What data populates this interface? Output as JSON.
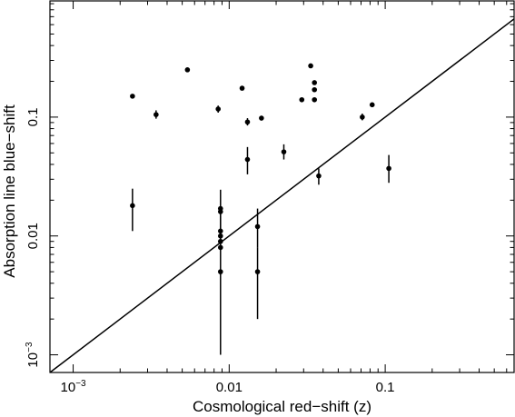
{
  "chart_data": {
    "type": "scatter",
    "title": "",
    "xlabel": "Cosmological red−shift (z)",
    "ylabel": "Absorption line blue−shift",
    "xscale": "log",
    "yscale": "log",
    "xlim": [
      0.00071,
      0.67
    ],
    "ylim": [
      0.00071,
      0.95
    ],
    "x_ticks": [
      {
        "value": 0.001,
        "label": "10",
        "sup": "−3"
      },
      {
        "value": 0.01,
        "label": "0.01",
        "sup": ""
      },
      {
        "value": 0.1,
        "label": "0.1",
        "sup": ""
      }
    ],
    "y_ticks": [
      {
        "value": 0.001,
        "label": "10",
        "sup": "−3"
      },
      {
        "value": 0.01,
        "label": "0.01",
        "sup": ""
      },
      {
        "value": 0.1,
        "label": "0.1",
        "sup": ""
      }
    ],
    "x_minor_ticks": [
      0.002,
      0.003,
      0.004,
      0.005,
      0.006,
      0.007,
      0.008,
      0.009,
      0.02,
      0.03,
      0.04,
      0.05,
      0.06,
      0.07,
      0.08,
      0.09,
      0.2,
      0.3,
      0.4,
      0.5,
      0.6
    ],
    "y_minor_ticks": [
      0.002,
      0.003,
      0.004,
      0.005,
      0.006,
      0.007,
      0.008,
      0.009,
      0.02,
      0.03,
      0.04,
      0.05,
      0.06,
      0.07,
      0.08,
      0.09,
      0.2,
      0.3,
      0.4,
      0.5,
      0.6,
      0.7,
      0.8,
      0.9
    ],
    "reference_line": {
      "type": "y=x"
    },
    "grid": false,
    "points": [
      {
        "x": 0.0024,
        "y": 0.15,
        "y_err_low": 0.0,
        "y_err_high": 0.0
      },
      {
        "x": 0.0034,
        "y": 0.105,
        "y_err_low": 0.097,
        "y_err_high": 0.114
      },
      {
        "x": 0.0054,
        "y": 0.25,
        "y_err_low": 0.0,
        "y_err_high": 0.0
      },
      {
        "x": 0.0085,
        "y": 0.117,
        "y_err_low": 0.109,
        "y_err_high": 0.125
      },
      {
        "x": 0.0121,
        "y": 0.175,
        "y_err_low": 0.0,
        "y_err_high": 0.0
      },
      {
        "x": 0.0131,
        "y": 0.091,
        "y_err_low": 0.085,
        "y_err_high": 0.098
      },
      {
        "x": 0.0161,
        "y": 0.098,
        "y_err_low": 0.0,
        "y_err_high": 0.0
      },
      {
        "x": 0.0292,
        "y": 0.14,
        "y_err_low": 0.0,
        "y_err_high": 0.0
      },
      {
        "x": 0.0333,
        "y": 0.27,
        "y_err_low": 0.0,
        "y_err_high": 0.0
      },
      {
        "x": 0.0352,
        "y": 0.195,
        "y_err_low": 0.0,
        "y_err_high": 0.0
      },
      {
        "x": 0.0352,
        "y": 0.17,
        "y_err_low": 0.0,
        "y_err_high": 0.0
      },
      {
        "x": 0.0352,
        "y": 0.14,
        "y_err_low": 0.0,
        "y_err_high": 0.0
      },
      {
        "x": 0.0713,
        "y": 0.1,
        "y_err_low": 0.094,
        "y_err_high": 0.107
      },
      {
        "x": 0.0825,
        "y": 0.127,
        "y_err_low": 0.0,
        "y_err_high": 0.0
      },
      {
        "x": 0.0024,
        "y": 0.018,
        "y_err_low": 0.011,
        "y_err_high": 0.025
      },
      {
        "x": 0.0131,
        "y": 0.044,
        "y_err_low": 0.033,
        "y_err_high": 0.056
      },
      {
        "x": 0.0224,
        "y": 0.051,
        "y_err_low": 0.044,
        "y_err_high": 0.059
      },
      {
        "x": 0.0375,
        "y": 0.032,
        "y_err_low": 0.027,
        "y_err_high": 0.037
      },
      {
        "x": 0.1055,
        "y": 0.037,
        "y_err_low": 0.028,
        "y_err_high": 0.048
      },
      {
        "x": 0.0088,
        "y": 0.017,
        "y_err_low": 0.009,
        "y_err_high": 0.0245
      },
      {
        "x": 0.0088,
        "y": 0.016,
        "y_err_low": 0.0,
        "y_err_high": 0.0
      },
      {
        "x": 0.0088,
        "y": 0.011,
        "y_err_low": 0.0,
        "y_err_high": 0.0
      },
      {
        "x": 0.0088,
        "y": 0.01,
        "y_err_low": 0.0,
        "y_err_high": 0.0
      },
      {
        "x": 0.0088,
        "y": 0.009,
        "y_err_low": 0.0,
        "y_err_high": 0.0
      },
      {
        "x": 0.0088,
        "y": 0.008,
        "y_err_low": 0.001,
        "y_err_high": 0.015
      },
      {
        "x": 0.0088,
        "y": 0.005,
        "y_err_low": 0.0,
        "y_err_high": 0.0
      },
      {
        "x": 0.0152,
        "y": 0.012,
        "y_err_low": 0.008,
        "y_err_high": 0.017
      },
      {
        "x": 0.0152,
        "y": 0.005,
        "y_err_low": 0.002,
        "y_err_high": 0.008
      }
    ]
  }
}
